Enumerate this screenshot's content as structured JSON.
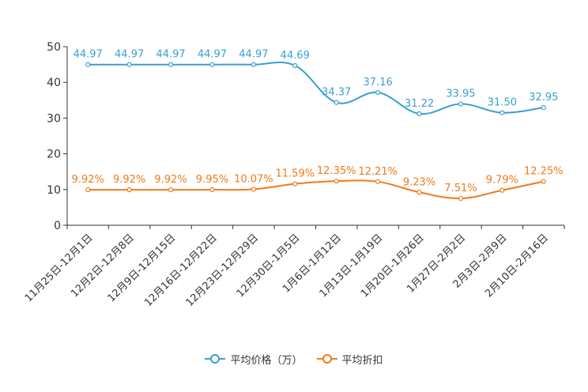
{
  "chart_data": {
    "type": "line",
    "categories": [
      "11月25日-12月1日",
      "12月2日-12月8日",
      "12月9日-12月15日",
      "12月16日-12月22日",
      "12月23日-12月29日",
      "12月30日-1月5日",
      "1月6日-1月12日",
      "1月13日-1月19日",
      "1月20日-1月26日",
      "1月27日-2月2日",
      "2月3日-2月9日",
      "2月10日-2月16日"
    ],
    "y_ticks": [
      "0",
      "10",
      "20",
      "30",
      "40",
      "50"
    ],
    "ylim": [
      0,
      50
    ],
    "series": [
      {
        "name": "平均价格（万）",
        "color": "#3a9fd0",
        "values": [
          44.97,
          44.97,
          44.97,
          44.97,
          44.97,
          44.69,
          34.37,
          37.16,
          31.22,
          33.95,
          31.5,
          32.95
        ],
        "labels": [
          "44.97",
          "44.97",
          "44.97",
          "44.97",
          "44.97",
          "44.69",
          "34.37",
          "37.16",
          "31.22",
          "33.95",
          "31.50",
          "32.95"
        ]
      },
      {
        "name": "平均折扣",
        "color": "#f07a1c",
        "values": [
          9.92,
          9.92,
          9.92,
          9.95,
          10.07,
          11.59,
          12.35,
          12.21,
          9.23,
          7.51,
          9.79,
          12.25
        ],
        "labels": [
          "9.92%",
          "9.92%",
          "9.92%",
          "9.95%",
          "10.07%",
          "11.59%",
          "12.35%",
          "12.21%",
          "9.23%",
          "7.51%",
          "9.79%",
          "12.25%"
        ]
      }
    ],
    "legend_position": "bottom-center"
  }
}
